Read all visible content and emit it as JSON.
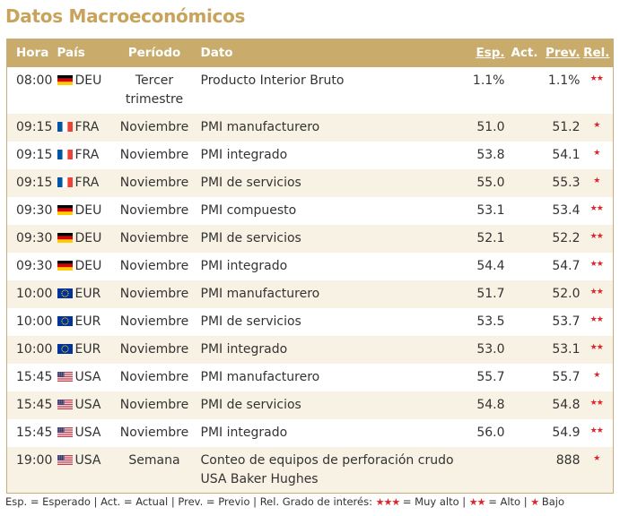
{
  "title": "Datos Macroeconómicos",
  "headers": {
    "hora": "Hora",
    "pais": "País",
    "periodo": "Período",
    "dato": "Dato",
    "esp": "Esp.",
    "act": "Act.",
    "prev": "Prev.",
    "rel": "Rel."
  },
  "rows": [
    {
      "hora": "08:00",
      "flag": "DEU",
      "pais": "DEU",
      "periodo": "Tercer trimestre",
      "dato": "Producto Interior Bruto",
      "esp": "1.1%",
      "act": "",
      "prev": "1.1%",
      "rel": "★★"
    },
    {
      "hora": "09:15",
      "flag": "FRA",
      "pais": "FRA",
      "periodo": "Noviembre",
      "dato": "PMI manufacturero",
      "esp": "51.0",
      "act": "",
      "prev": "51.2",
      "rel": "★"
    },
    {
      "hora": "09:15",
      "flag": "FRA",
      "pais": "FRA",
      "periodo": "Noviembre",
      "dato": "PMI integrado",
      "esp": "53.8",
      "act": "",
      "prev": "54.1",
      "rel": "★"
    },
    {
      "hora": "09:15",
      "flag": "FRA",
      "pais": "FRA",
      "periodo": "Noviembre",
      "dato": "PMI de servicios",
      "esp": "55.0",
      "act": "",
      "prev": "55.3",
      "rel": "★"
    },
    {
      "hora": "09:30",
      "flag": "DEU",
      "pais": "DEU",
      "periodo": "Noviembre",
      "dato": "PMI compuesto",
      "esp": "53.1",
      "act": "",
      "prev": "53.4",
      "rel": "★★"
    },
    {
      "hora": "09:30",
      "flag": "DEU",
      "pais": "DEU",
      "periodo": "Noviembre",
      "dato": "PMI de servicios",
      "esp": "52.1",
      "act": "",
      "prev": "52.2",
      "rel": "★★"
    },
    {
      "hora": "09:30",
      "flag": "DEU",
      "pais": "DEU",
      "periodo": "Noviembre",
      "dato": "PMI integrado",
      "esp": "54.4",
      "act": "",
      "prev": "54.7",
      "rel": "★★"
    },
    {
      "hora": "10:00",
      "flag": "EUR",
      "pais": "EUR",
      "periodo": "Noviembre",
      "dato": "PMI manufacturero",
      "esp": "51.7",
      "act": "",
      "prev": "52.0",
      "rel": "★★"
    },
    {
      "hora": "10:00",
      "flag": "EUR",
      "pais": "EUR",
      "periodo": "Noviembre",
      "dato": "PMI de servicios",
      "esp": "53.5",
      "act": "",
      "prev": "53.7",
      "rel": "★★"
    },
    {
      "hora": "10:00",
      "flag": "EUR",
      "pais": "EUR",
      "periodo": "Noviembre",
      "dato": "PMI integrado",
      "esp": "53.0",
      "act": "",
      "prev": "53.1",
      "rel": "★★"
    },
    {
      "hora": "15:45",
      "flag": "USA",
      "pais": "USA",
      "periodo": "Noviembre",
      "dato": "PMI manufacturero",
      "esp": "55.7",
      "act": "",
      "prev": "55.7",
      "rel": "★"
    },
    {
      "hora": "15:45",
      "flag": "USA",
      "pais": "USA",
      "periodo": "Noviembre",
      "dato": "PMI de servicios",
      "esp": "54.8",
      "act": "",
      "prev": "54.8",
      "rel": "★★"
    },
    {
      "hora": "15:45",
      "flag": "USA",
      "pais": "USA",
      "periodo": "Noviembre",
      "dato": "PMI integrado",
      "esp": "56.0",
      "act": "",
      "prev": "54.9",
      "rel": "★★"
    },
    {
      "hora": "19:00",
      "flag": "USA",
      "pais": "USA",
      "periodo": "Semana",
      "dato": "Conteo de equipos de perforación crudo USA Baker Hughes",
      "esp": "",
      "act": "",
      "prev": "888",
      "rel": "★"
    }
  ],
  "legend": {
    "part1": "Esp. = Esperado | Act. = Actual | Prev. = Previo | Rel. Grado de interés:",
    "stars3": "★★★",
    "muy_alto": "= Muy alto |",
    "stars2": "★★",
    "alto": "= Alto |",
    "stars1": "★",
    "bajo": "Bajo"
  },
  "colors": {
    "accent": "#c8a35c",
    "header_bg": "#c9ab6c",
    "alt_row": "#f8f2e4",
    "star": "#e0242a"
  }
}
